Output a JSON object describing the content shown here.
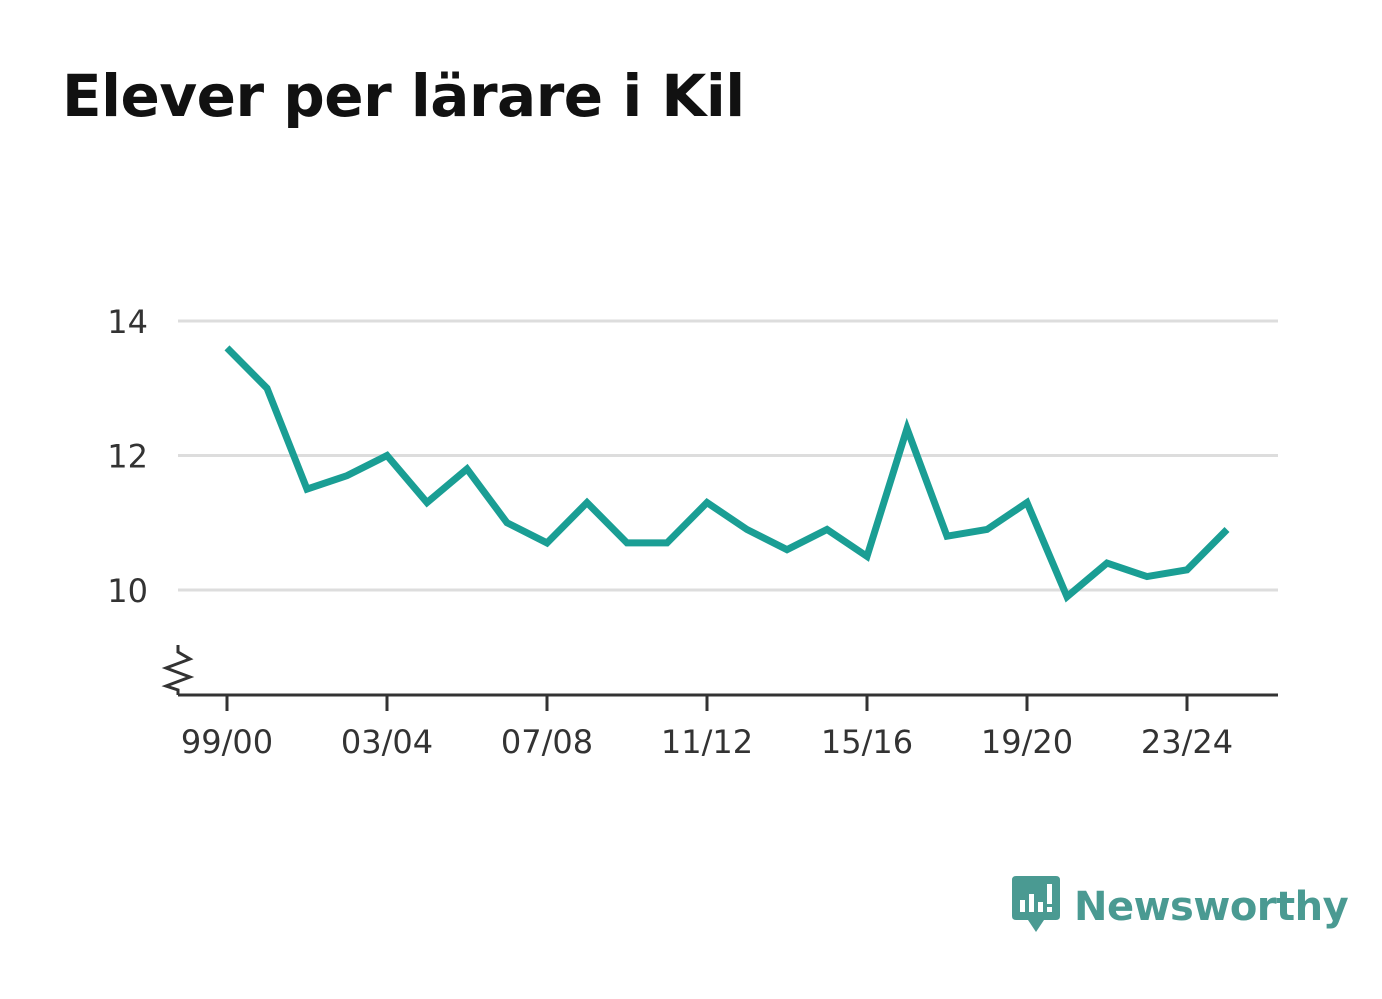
{
  "title": "Elever per lärare i Kil",
  "brand": "Newsworthy",
  "colors": {
    "line": "#1a9e94",
    "grid": "#dddddd",
    "axis": "#333333",
    "brand": "#4a9a92"
  },
  "chart_data": {
    "type": "line",
    "title": "Elever per lärare i Kil",
    "xlabel": "",
    "ylabel": "",
    "x": [
      "99/00",
      "00/01",
      "01/02",
      "02/03",
      "03/04",
      "04/05",
      "05/06",
      "06/07",
      "07/08",
      "08/09",
      "09/10",
      "10/11",
      "11/12",
      "12/13",
      "13/14",
      "14/15",
      "15/16",
      "16/17",
      "17/18",
      "18/19",
      "19/20",
      "20/21",
      "21/22",
      "22/23",
      "23/24",
      "24/25"
    ],
    "x_tick_labels": [
      "99/00",
      "03/04",
      "07/08",
      "11/12",
      "15/16",
      "19/20",
      "23/24"
    ],
    "series": [
      {
        "values": [
          13.6,
          13.0,
          11.5,
          11.7,
          12.0,
          11.3,
          11.8,
          11.0,
          10.7,
          11.3,
          10.7,
          10.7,
          11.3,
          10.9,
          10.6,
          10.9,
          10.5,
          12.4,
          10.8,
          10.9,
          11.3,
          9.9,
          10.4,
          10.2,
          10.3,
          10.9
        ]
      }
    ],
    "ylim": [
      8.5,
      14
    ],
    "y_ticks": [
      10,
      12,
      14
    ],
    "grid": true,
    "axis_break": true,
    "legend": "none"
  }
}
